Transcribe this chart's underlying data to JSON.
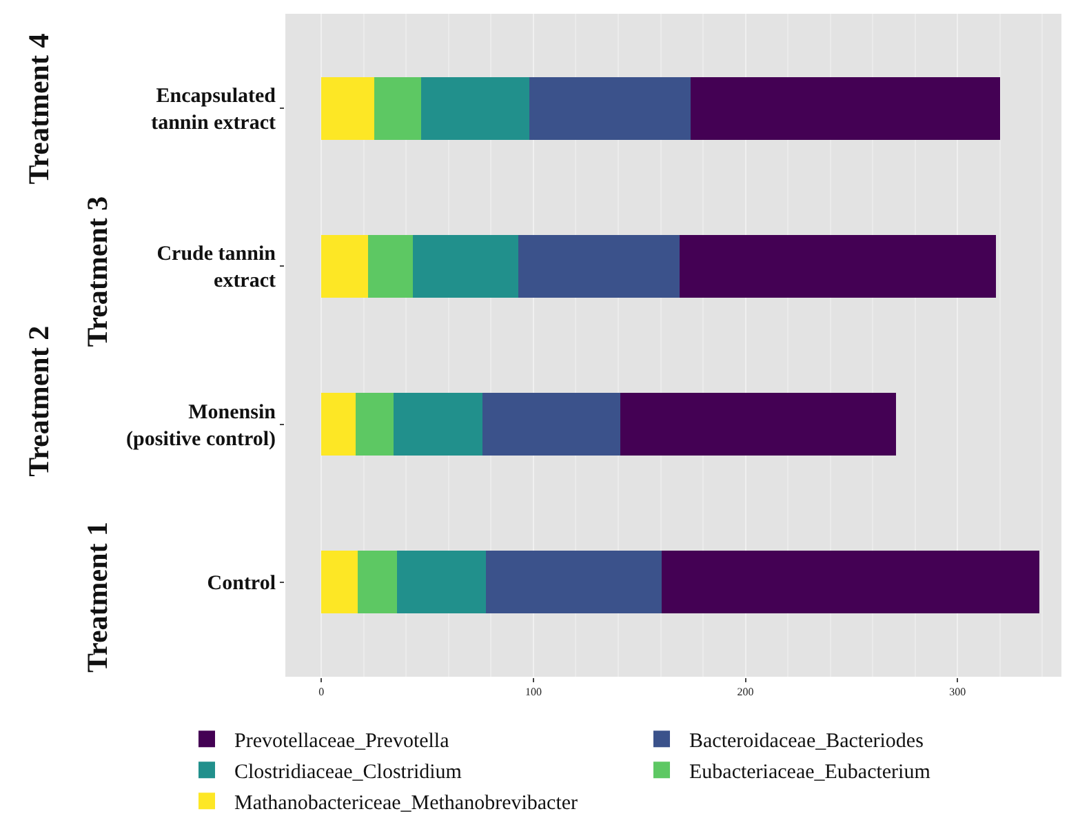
{
  "chart_data": {
    "type": "bar",
    "orientation": "horizontal",
    "stacked": true,
    "categories": [
      "Encapsulated\ntannin extract",
      "Crude tannin\nextract",
      "Monensin\n(positive control)",
      "Control"
    ],
    "series": [
      {
        "name": "Mathanobactericeae_Methanobrevibacter",
        "color": "#fde725",
        "values": [
          25,
          22,
          16,
          17
        ]
      },
      {
        "name": "Eubacteriaceae_Eubacterium",
        "color": "#5dc863",
        "values": [
          22,
          21,
          18,
          18.5
        ]
      },
      {
        "name": "Clostridiaceae_Clostridium",
        "color": "#21908c",
        "values": [
          51,
          50,
          42,
          42
        ]
      },
      {
        "name": "Bacteroidaceae_Bacteriodes",
        "color": "#3b528b",
        "values": [
          76,
          76,
          65,
          83
        ]
      },
      {
        "name": "Prevotellaceae_Prevotella",
        "color": "#440154",
        "values": [
          146,
          149,
          130,
          178
        ]
      }
    ],
    "xlim": [
      -17,
      349
    ],
    "xticks": [
      0,
      100,
      200,
      300
    ],
    "grid": "x",
    "legend": "bottom",
    "annotations": [
      "Treatment 4",
      "Treatment 3",
      "Treatment 2",
      "Treatment 1"
    ]
  }
}
